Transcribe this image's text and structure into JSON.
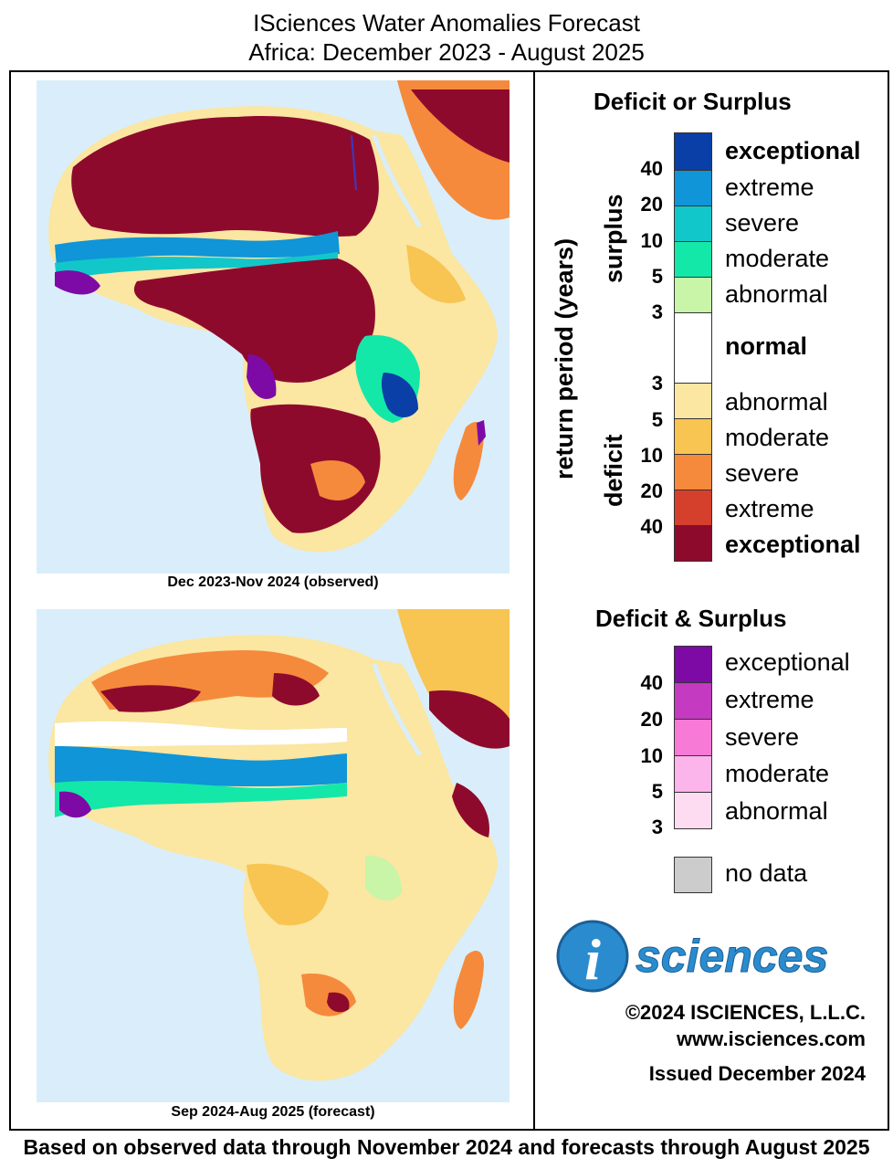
{
  "title_line1": "ISciences Water Anomalies Forecast",
  "title_line2": "Africa: December 2023 - August 2025",
  "maps": [
    {
      "caption": "Dec 2023-Nov 2024 (observed)"
    },
    {
      "caption": "Sep 2024-Aug 2025 (forecast)"
    }
  ],
  "legend": {
    "heading_or": "Deficit or Surplus",
    "axis_label": "return period (years)",
    "surplus_label": "surplus",
    "deficit_label": "deficit",
    "surplus_numbers": [
      "40",
      "20",
      "10",
      "5",
      "3"
    ],
    "deficit_numbers": [
      "3",
      "5",
      "10",
      "20",
      "40"
    ],
    "classes": [
      {
        "label": "exceptional",
        "color": "#0a3fa8"
      },
      {
        "label": "extreme",
        "color": "#0f95d8"
      },
      {
        "label": "severe",
        "color": "#12c7c9"
      },
      {
        "label": "moderate",
        "color": "#14e8a8"
      },
      {
        "label": "abnormal",
        "color": "#c8f5a8"
      },
      {
        "label": "normal",
        "color": "#ffffff"
      },
      {
        "label": "abnormal",
        "color": "#fbe6a2"
      },
      {
        "label": "moderate",
        "color": "#f8c452"
      },
      {
        "label": "severe",
        "color": "#f58a3c"
      },
      {
        "label": "extreme",
        "color": "#d5402c"
      },
      {
        "label": "exceptional",
        "color": "#8e0a2d"
      }
    ],
    "heading_and": "Deficit & Surplus",
    "both_numbers": [
      "40",
      "20",
      "10",
      "5",
      "3"
    ],
    "both_classes": [
      {
        "label": "exceptional",
        "color": "#7e0aa6"
      },
      {
        "label": "extreme",
        "color": "#c43ac0"
      },
      {
        "label": "severe",
        "color": "#f77ad6"
      },
      {
        "label": "moderate",
        "color": "#fbb5ea"
      },
      {
        "label": "abnormal",
        "color": "#fddcf2"
      }
    ],
    "no_data_label": "no data",
    "no_data_color": "#cccccc"
  },
  "logo_text": "sciences",
  "logo_letter": "i",
  "copyright": "©2024 ISCIENCES, L.L.C.",
  "website": "www.isciences.com",
  "issued": "Issued December 2024",
  "footer": "Based on observed data through November 2024 and forecasts through August 2025"
}
